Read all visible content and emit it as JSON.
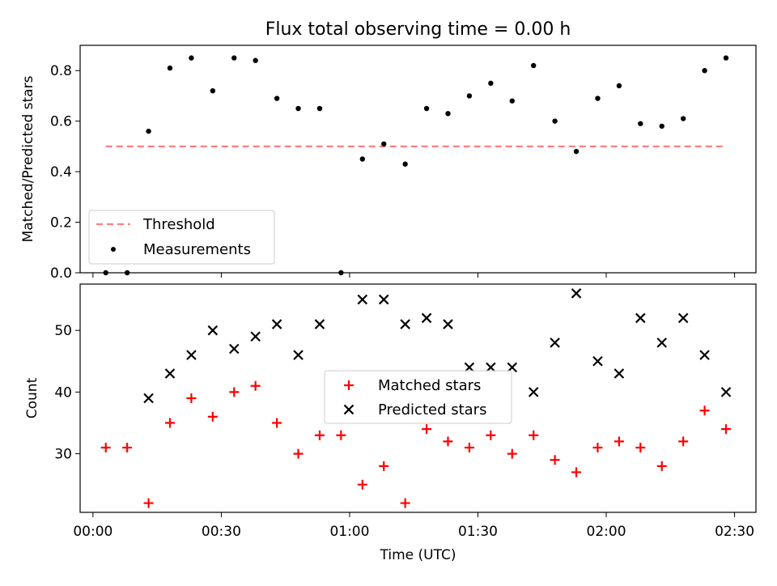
{
  "chart_data": [
    {
      "type": "scatter",
      "title": "Flux total observing time = 0.00 h",
      "xlabel": "",
      "ylabel": "Matched/Predicted stars",
      "xlim": [
        "23:57",
        "02:35"
      ],
      "ylim": [
        0,
        0.9
      ],
      "yticks": [
        "0.0",
        "0.2",
        "0.4",
        "0.6",
        "0.8"
      ],
      "grid": false,
      "legend_position": "lower-left",
      "series": [
        {
          "name": "Threshold",
          "kind": "dashed-line",
          "color": "#ff7f7f",
          "x": [
            "00:03",
            "02:28"
          ],
          "y": [
            0.5,
            0.5
          ]
        },
        {
          "name": "Measurements",
          "kind": "dot",
          "color": "#000000",
          "x": [
            "00:03",
            "00:08",
            "00:13",
            "00:18",
            "00:23",
            "00:28",
            "00:33",
            "00:38",
            "00:43",
            "00:48",
            "00:53",
            "00:58",
            "01:03",
            "01:08",
            "01:13",
            "01:18",
            "01:23",
            "01:28",
            "01:33",
            "01:38",
            "01:43",
            "01:48",
            "01:53",
            "01:58",
            "02:03",
            "02:08",
            "02:13",
            "02:18",
            "02:23",
            "02:28"
          ],
          "y": [
            0.0,
            0.0,
            0.56,
            0.81,
            0.85,
            0.72,
            0.85,
            0.84,
            0.69,
            0.65,
            0.65,
            0.0,
            0.45,
            0.51,
            0.43,
            0.65,
            0.63,
            0.7,
            0.75,
            0.68,
            0.82,
            0.6,
            0.48,
            0.69,
            0.74,
            0.59,
            0.58,
            0.61,
            0.8,
            0.85
          ]
        }
      ]
    },
    {
      "type": "scatter",
      "title": "",
      "xlabel": "Time (UTC)",
      "ylabel": "Count",
      "xlim": [
        "23:57",
        "02:35"
      ],
      "ylim": [
        20.5,
        57.5
      ],
      "xticks": [
        "00:00",
        "00:30",
        "01:00",
        "01:30",
        "02:00",
        "02:30"
      ],
      "yticks": [
        "30",
        "40",
        "50"
      ],
      "grid": false,
      "legend_position": "center",
      "series": [
        {
          "name": "Matched stars",
          "marker": "plus",
          "color": "#ff0000",
          "x": [
            "00:03",
            "00:08",
            "00:13",
            "00:18",
            "00:23",
            "00:28",
            "00:33",
            "00:38",
            "00:43",
            "00:48",
            "00:53",
            "00:58",
            "01:03",
            "01:08",
            "01:13",
            "01:18",
            "01:23",
            "01:28",
            "01:33",
            "01:38",
            "01:43",
            "01:48",
            "01:53",
            "01:58",
            "02:03",
            "02:08",
            "02:13",
            "02:18",
            "02:23",
            "02:28"
          ],
          "y": [
            31,
            31,
            22,
            35,
            39,
            36,
            40,
            41,
            35,
            30,
            33,
            33,
            25,
            28,
            22,
            34,
            32,
            31,
            33,
            30,
            33,
            29,
            27,
            31,
            32,
            31,
            28,
            32,
            37,
            34
          ]
        },
        {
          "name": "Predicted stars",
          "marker": "x",
          "color": "#000000",
          "x": [
            "00:13",
            "00:18",
            "00:23",
            "00:28",
            "00:33",
            "00:38",
            "00:43",
            "00:48",
            "00:53",
            "01:03",
            "01:08",
            "01:13",
            "01:18",
            "01:23",
            "01:28",
            "01:33",
            "01:38",
            "01:43",
            "01:48",
            "01:53",
            "01:58",
            "02:03",
            "02:08",
            "02:13",
            "02:18",
            "02:23",
            "02:28"
          ],
          "y": [
            39,
            43,
            46,
            50,
            47,
            49,
            51,
            46,
            51,
            55,
            55,
            51,
            52,
            51,
            44,
            44,
            44,
            40,
            48,
            56,
            45,
            43,
            52,
            48,
            52,
            46,
            40
          ]
        }
      ]
    }
  ]
}
